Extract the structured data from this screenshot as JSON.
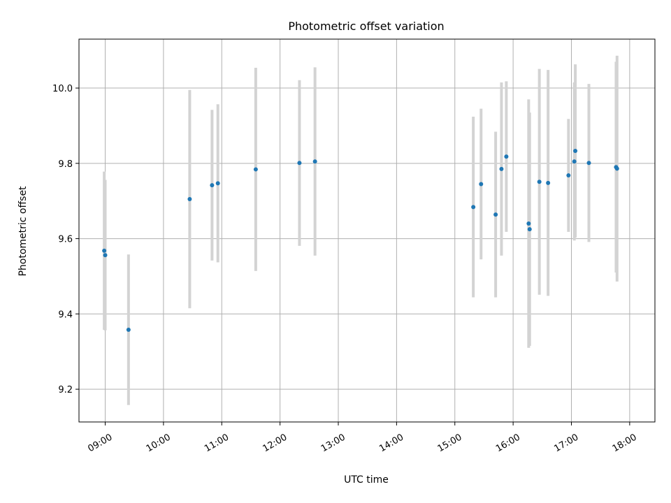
{
  "chart_data": {
    "type": "scatter",
    "title": "Photometric offset variation",
    "xlabel": "UTC time",
    "ylabel": "Photometric offset",
    "x_tick_labels": [
      "09:00",
      "10:00",
      "11:00",
      "12:00",
      "13:00",
      "14:00",
      "15:00",
      "16:00",
      "17:00",
      "18:00"
    ],
    "y_tick_labels": [
      "9.2",
      "9.4",
      "9.6",
      "9.8",
      "10.0"
    ],
    "y_ticks": [
      9.2,
      9.4,
      9.6,
      9.8,
      10.0
    ],
    "xlim": [
      "08:33",
      "18:26"
    ],
    "ylim": [
      9.113,
      10.13
    ],
    "grid": true,
    "colors": {
      "point": "#1f77b4",
      "errorbar": "#d3d3d3",
      "grid": "#b0b0b0",
      "axes": "#000000"
    },
    "points": [
      {
        "x": "08:59",
        "y": 9.568,
        "err": 0.21
      },
      {
        "x": "09:00",
        "y": 9.556,
        "err": 0.2
      },
      {
        "x": "09:24",
        "y": 9.358,
        "err": 0.2
      },
      {
        "x": "10:27",
        "y": 9.705,
        "err": 0.29
      },
      {
        "x": "10:50",
        "y": 9.742,
        "err": 0.2
      },
      {
        "x": "10:56",
        "y": 9.747,
        "err": 0.21
      },
      {
        "x": "11:35",
        "y": 9.784,
        "err": 0.27
      },
      {
        "x": "12:20",
        "y": 9.801,
        "err": 0.22
      },
      {
        "x": "12:36",
        "y": 9.805,
        "err": 0.25
      },
      {
        "x": "15:19",
        "y": 9.684,
        "err": 0.24
      },
      {
        "x": "15:27",
        "y": 9.745,
        "err": 0.2
      },
      {
        "x": "15:42",
        "y": 9.664,
        "err": 0.22
      },
      {
        "x": "15:48",
        "y": 9.785,
        "err": 0.23
      },
      {
        "x": "15:53",
        "y": 9.818,
        "err": 0.2
      },
      {
        "x": "16:16",
        "y": 9.64,
        "err": 0.33
      },
      {
        "x": "16:17",
        "y": 9.625,
        "err": 0.31
      },
      {
        "x": "16:27",
        "y": 9.751,
        "err": 0.3
      },
      {
        "x": "16:36",
        "y": 9.748,
        "err": 0.3
      },
      {
        "x": "16:57",
        "y": 9.768,
        "err": 0.15
      },
      {
        "x": "17:03",
        "y": 9.805,
        "err": 0.21
      },
      {
        "x": "17:04",
        "y": 9.833,
        "err": 0.23
      },
      {
        "x": "17:18",
        "y": 9.801,
        "err": 0.21
      },
      {
        "x": "17:46",
        "y": 9.79,
        "err": 0.28
      },
      {
        "x": "17:47",
        "y": 9.786,
        "err": 0.3
      }
    ]
  }
}
